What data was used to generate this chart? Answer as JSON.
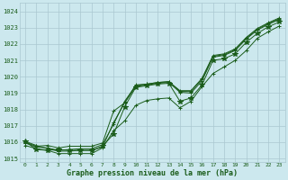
{
  "title": "Graphe pression niveau de la mer (hPa)",
  "background_color": "#cce8ee",
  "grid_color": "#aac8d0",
  "line_color": "#1a5c1a",
  "x_labels": [
    "0",
    "1",
    "2",
    "3",
    "4",
    "5",
    "6",
    "7",
    "8",
    "9",
    "10",
    "11",
    "12",
    "13",
    "14",
    "15",
    "16",
    "17",
    "18",
    "19",
    "20",
    "21",
    "22",
    "23"
  ],
  "ylim": [
    1014.8,
    1024.5
  ],
  "yticks": [
    1015,
    1016,
    1017,
    1018,
    1019,
    1020,
    1021,
    1022,
    1023,
    1024
  ],
  "series": [
    [
      1016.0,
      1015.75,
      1015.8,
      1015.65,
      1015.75,
      1015.75,
      1015.75,
      1015.95,
      1017.9,
      1018.4,
      1019.5,
      1019.55,
      1019.65,
      1019.7,
      1019.15,
      1019.15,
      1019.9,
      1021.3,
      1021.4,
      1021.7,
      1022.4,
      1022.95,
      1023.3,
      1023.6
    ],
    [
      1015.95,
      1015.7,
      1015.65,
      1015.5,
      1015.55,
      1015.6,
      1015.6,
      1015.85,
      1017.1,
      1018.5,
      1019.45,
      1019.55,
      1019.65,
      1019.7,
      1019.1,
      1019.1,
      1019.85,
      1021.25,
      1021.35,
      1021.65,
      1022.35,
      1022.9,
      1023.25,
      1023.55
    ],
    [
      1016.05,
      1015.8,
      1015.6,
      1015.45,
      1015.45,
      1015.5,
      1015.5,
      1015.7,
      1017.2,
      1018.4,
      1019.4,
      1019.5,
      1019.6,
      1019.65,
      1019.05,
      1019.0,
      1019.75,
      1021.2,
      1021.3,
      1021.6,
      1022.3,
      1022.85,
      1023.2,
      1023.5
    ],
    [
      1016.05,
      1015.55,
      1015.5,
      1015.55,
      1015.5,
      1015.5,
      1015.5,
      1015.75,
      1016.5,
      1018.15,
      1019.35,
      1019.45,
      1019.55,
      1019.6,
      1018.5,
      1018.7,
      1019.5,
      1021.0,
      1021.1,
      1021.4,
      1022.1,
      1022.65,
      1023.05,
      1023.35
    ],
    [
      1015.8,
      1015.6,
      1015.5,
      1015.3,
      1015.3,
      1015.3,
      1015.3,
      1015.65,
      1016.7,
      1017.3,
      1018.25,
      1018.55,
      1018.65,
      1018.7,
      1018.1,
      1018.5,
      1019.4,
      1020.2,
      1020.6,
      1021.0,
      1021.6,
      1022.35,
      1022.75,
      1023.1
    ]
  ]
}
